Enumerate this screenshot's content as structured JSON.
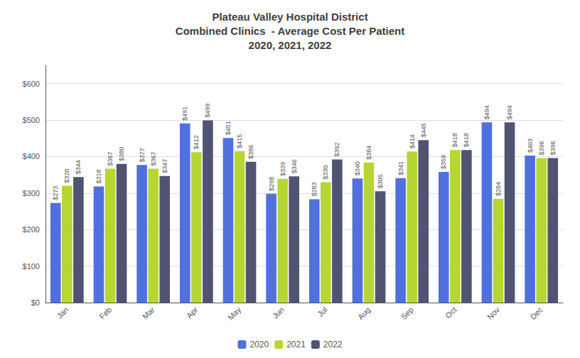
{
  "chart_data": {
    "type": "bar",
    "title": "Plateau Valley Hospital District\nCombined Clinics  - Average Cost Per Patient\n2020, 2021, 2022",
    "categories": [
      "Jan",
      "Feb",
      "Mar",
      "Apr",
      "May",
      "Jun",
      "Jul",
      "Aug",
      "Sep",
      "Oct",
      "Nov",
      "Dec"
    ],
    "series": [
      {
        "name": "2020",
        "values": [
          273,
          318,
          377,
          491,
          451,
          298,
          283,
          340,
          341,
          358,
          494,
          403
        ],
        "value_labels": [
          "$273",
          "$318",
          "$377",
          "$491",
          "$451",
          "$298",
          "$283",
          "$340",
          "$341",
          "$358",
          "$494",
          "$403"
        ]
      },
      {
        "name": "2021",
        "values": [
          320,
          367,
          367,
          412,
          415,
          339,
          330,
          384,
          414,
          418,
          284,
          396
        ],
        "value_labels": [
          "$320",
          "$367",
          "$367",
          "$412",
          "$415",
          "$339",
          "$330",
          "$384",
          "$414",
          "$418",
          "$284",
          "$396"
        ]
      },
      {
        "name": "2022",
        "values": [
          344,
          380,
          347,
          499,
          386,
          346,
          392,
          305,
          445,
          418,
          494,
          396
        ],
        "value_labels": [
          "$344",
          "$380",
          "$347",
          "$499",
          "$386",
          "$346",
          "$392",
          "$305",
          "$445",
          "$418",
          "$494",
          "$396"
        ]
      }
    ],
    "ylim": [
      0,
      650
    ],
    "yticks": [
      {
        "value": 0,
        "label": "$0"
      },
      {
        "value": 100,
        "label": "$100"
      },
      {
        "value": 200,
        "label": "$200"
      },
      {
        "value": 300,
        "label": "$300"
      },
      {
        "value": 400,
        "label": "$400"
      },
      {
        "value": 500,
        "label": "$500"
      },
      {
        "value": 600,
        "label": "$600"
      }
    ],
    "grid": true,
    "legend": "bottom",
    "data_labels": true
  }
}
